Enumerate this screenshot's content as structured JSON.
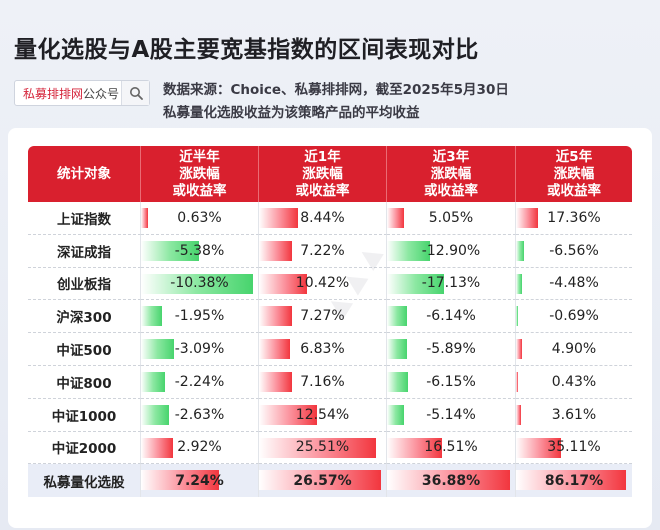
{
  "title": "量化选股与A股主要宽基指数的区间表现对比",
  "search": {
    "brand": "私募排排网",
    "suffix": "公众号",
    "icon": "search-icon"
  },
  "notes": {
    "line1": "数据来源：Choice、私募排排网，截至2025年5月30日",
    "line2": "私募量化选股收益为该策略产品的平均收益"
  },
  "table": {
    "headers": [
      [
        "统计对象"
      ],
      [
        "近半年",
        "涨跌幅",
        "或收益率"
      ],
      [
        "近1年",
        "涨跌幅",
        "或收益率"
      ],
      [
        "近3年",
        "涨跌幅",
        "或收益率"
      ],
      [
        "近5年",
        "涨跌幅",
        "或收益率"
      ]
    ],
    "rows": [
      {
        "name": "上证指数",
        "values": [
          "0.63%",
          "8.44%",
          "5.05%",
          "17.36%"
        ]
      },
      {
        "name": "深证成指",
        "values": [
          "-5.38%",
          "7.22%",
          "-12.90%",
          "-6.56%"
        ]
      },
      {
        "name": "创业板指",
        "values": [
          "-10.38%",
          "10.42%",
          "-17.13%",
          "-4.48%"
        ]
      },
      {
        "name": "沪深300",
        "values": [
          "-1.95%",
          "7.27%",
          "-6.14%",
          "-0.69%"
        ]
      },
      {
        "name": "中证500",
        "values": [
          "-3.09%",
          "6.83%",
          "-5.89%",
          "4.90%"
        ]
      },
      {
        "name": "中证800",
        "values": [
          "-2.24%",
          "7.16%",
          "-6.15%",
          "0.43%"
        ]
      },
      {
        "name": "中证1000",
        "values": [
          "-2.63%",
          "12.54%",
          "-5.14%",
          "3.61%"
        ]
      },
      {
        "name": "中证2000",
        "values": [
          "2.92%",
          "25.51%",
          "16.51%",
          "35.11%"
        ]
      },
      {
        "name": "私募量化选股",
        "values": [
          "7.24%",
          "26.57%",
          "36.88%",
          "86.17%"
        ]
      }
    ],
    "bar_max": [
      10.38,
      26.57,
      36.88,
      86.17
    ],
    "colors": {
      "header": "#d9202e",
      "positive": "#f2363e",
      "negative": "#47d46d"
    }
  },
  "watermark_icon": "watermark-logo"
}
